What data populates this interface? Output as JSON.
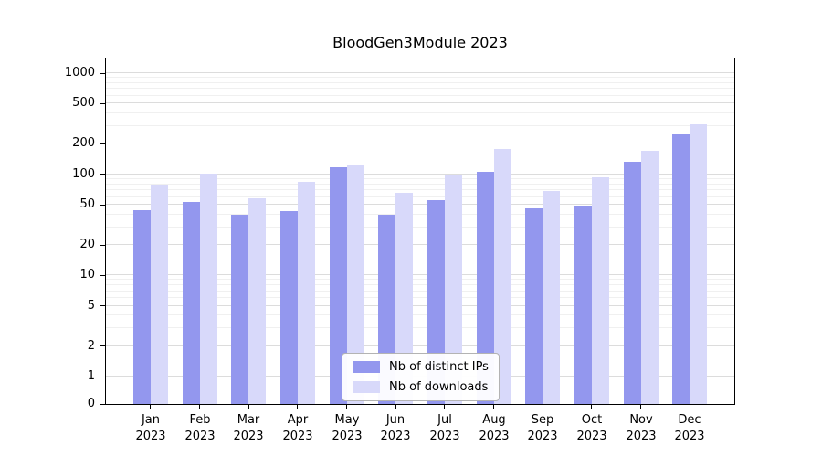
{
  "chart_data": {
    "type": "bar",
    "title": "BloodGen3Module 2023",
    "categories": [
      "Jan 2023",
      "Feb 2023",
      "Mar 2023",
      "Apr 2023",
      "May 2023",
      "Jun 2023",
      "Jul 2023",
      "Aug 2023",
      "Sep 2023",
      "Oct 2023",
      "Nov 2023",
      "Dec 2023"
    ],
    "series": [
      {
        "name": "Nb of distinct IPs",
        "color": "#9397ee",
        "values": [
          44,
          53,
          40,
          43,
          117,
          40,
          56,
          107,
          46,
          49,
          133,
          250
        ]
      },
      {
        "name": "Nb of downloads",
        "color": "#d8d9fa",
        "values": [
          80,
          102,
          58,
          84,
          122,
          65,
          100,
          180,
          69,
          93,
          170,
          315
        ]
      }
    ],
    "xlabel": "",
    "ylabel": "",
    "yscale": "symlog",
    "yticks": [
      0,
      1,
      2,
      5,
      10,
      20,
      50,
      100,
      200,
      500,
      1000
    ],
    "ylim": [
      0,
      1400
    ],
    "grid": true,
    "legend_position": "lower center"
  }
}
